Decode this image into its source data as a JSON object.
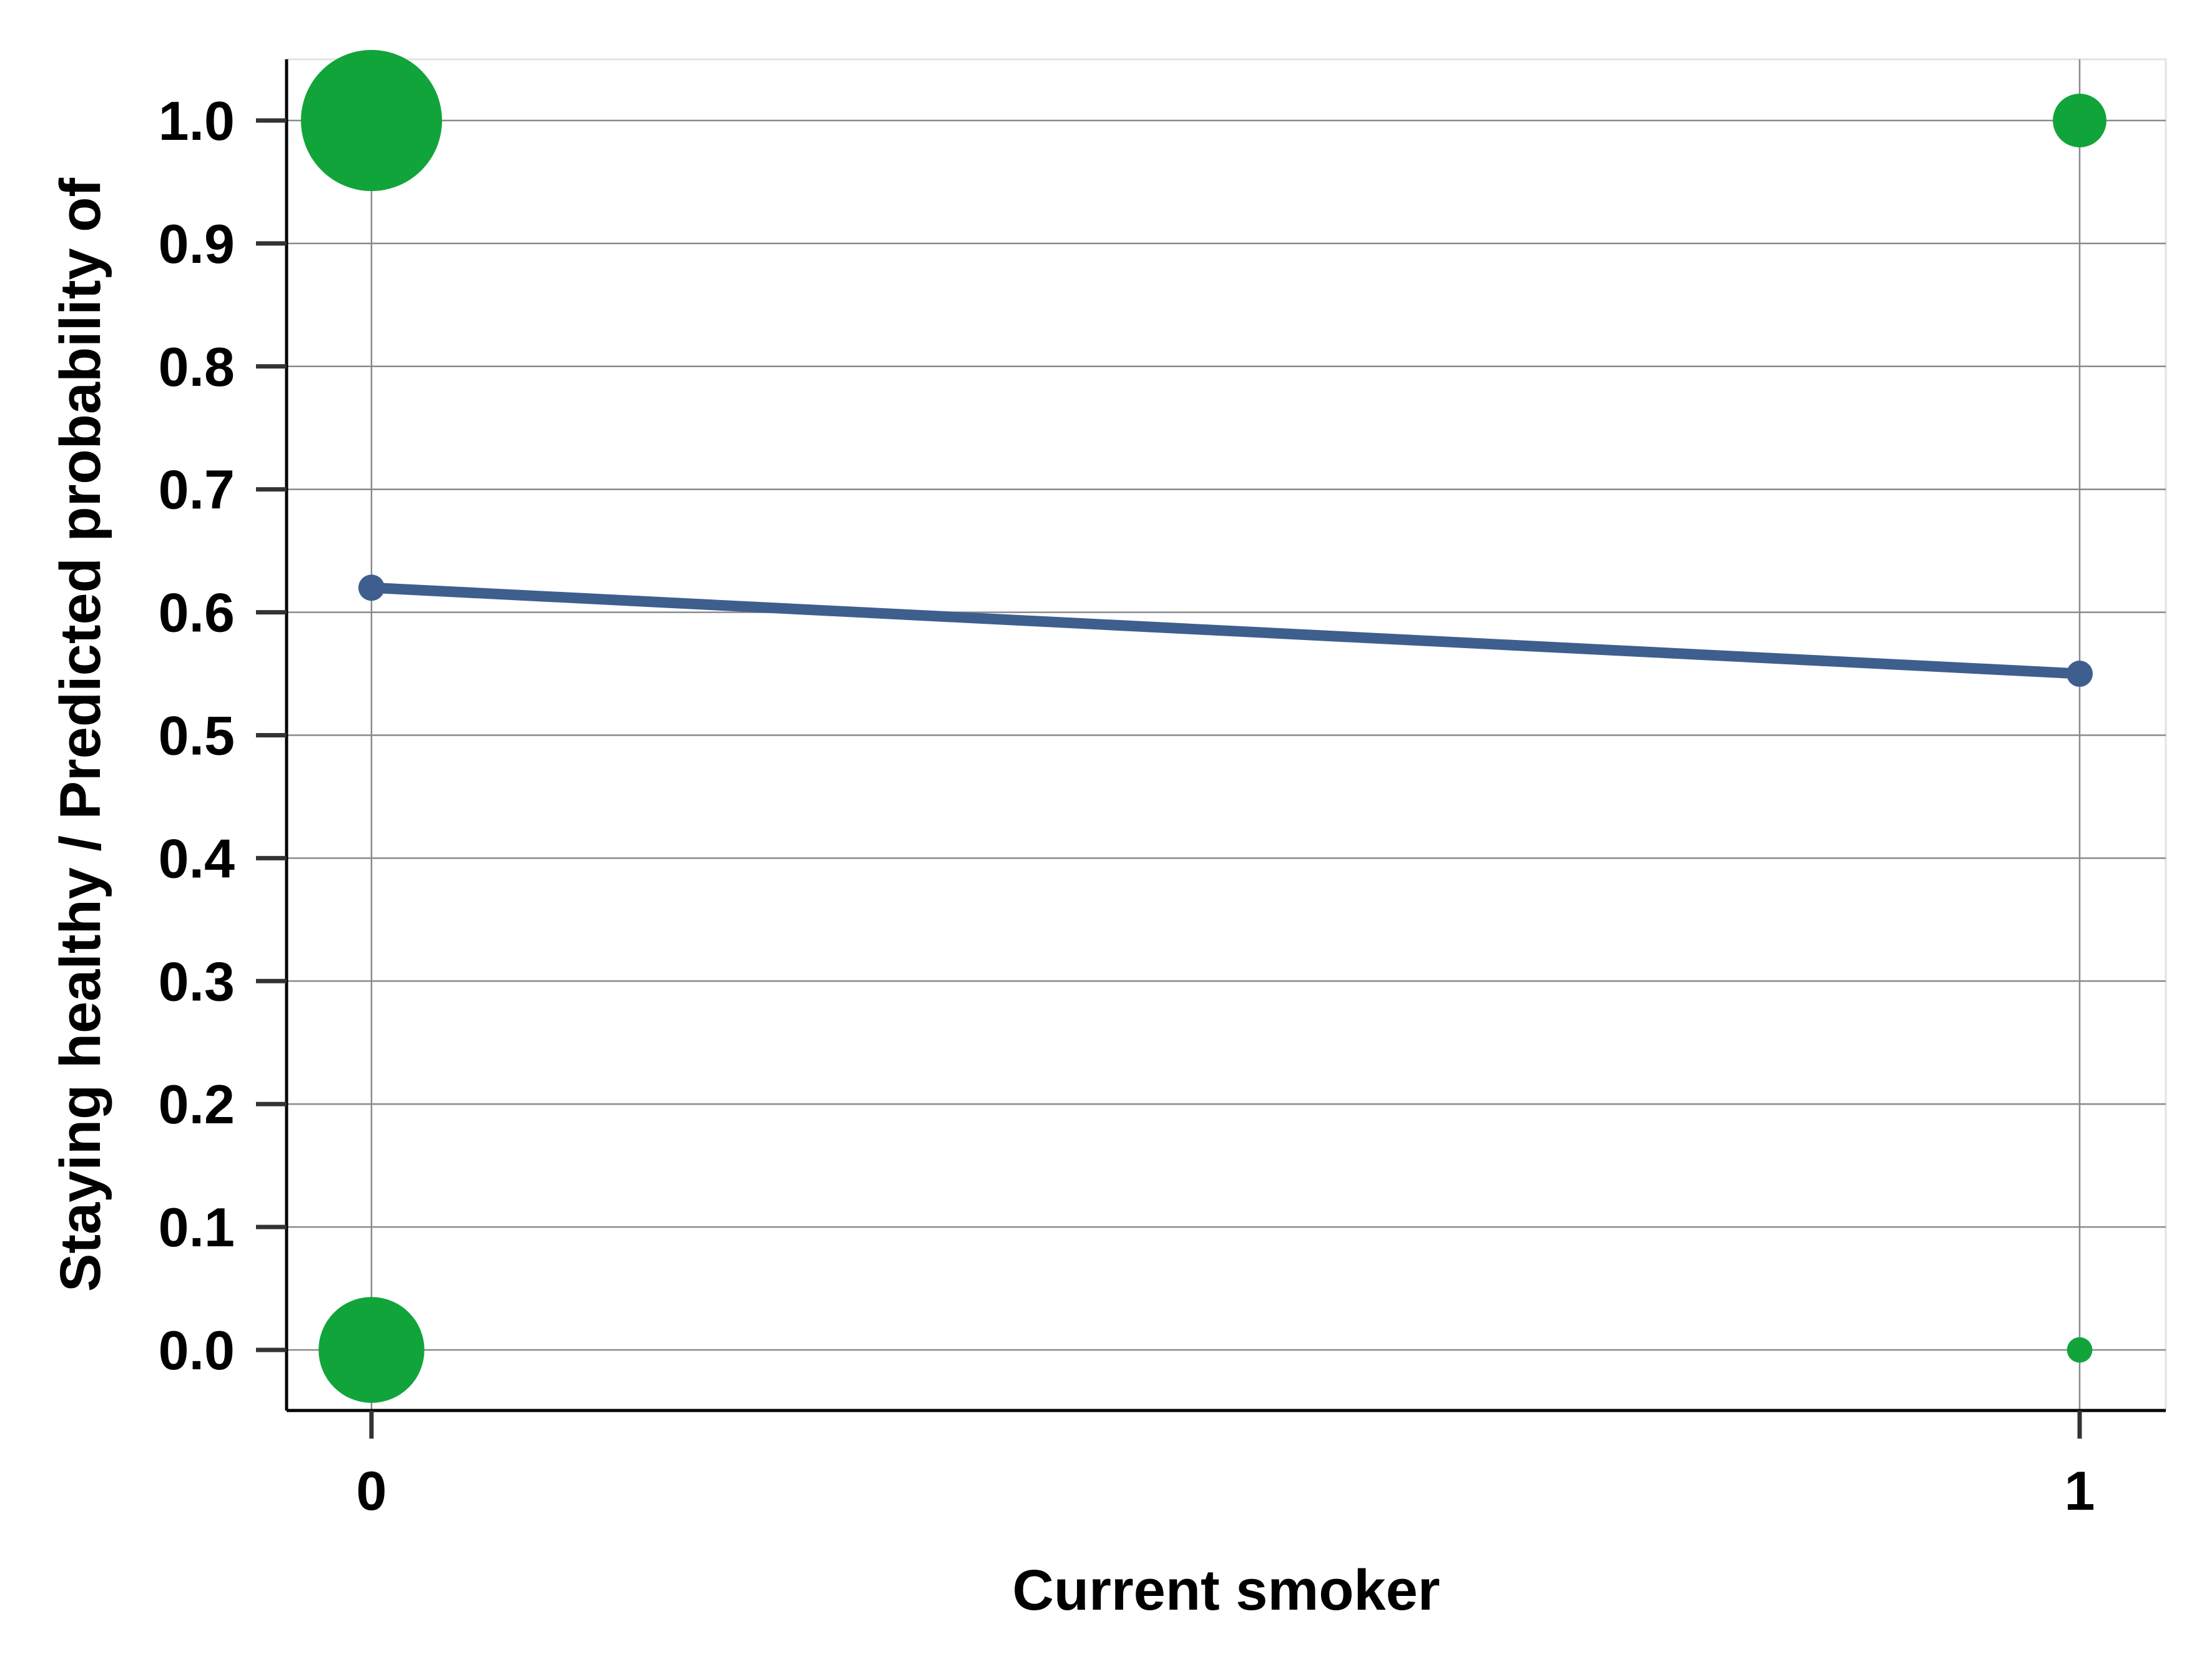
{
  "chart_data": {
    "type": "scatter",
    "title": "",
    "xlabel": "Current smoker",
    "ylabel": "Staying healthy / Predicted probability of",
    "xlim": [
      -0.05,
      1.05
    ],
    "ylim": [
      -0.05,
      1.05
    ],
    "x_ticks": [
      0,
      1
    ],
    "x_tick_labels": [
      "0",
      "1"
    ],
    "y_ticks": [
      0.0,
      0.1,
      0.2,
      0.3,
      0.4,
      0.5,
      0.6,
      0.7,
      0.8,
      0.9,
      1.0
    ],
    "y_tick_labels": [
      "0.0",
      "0.1",
      "0.2",
      "0.3",
      "0.4",
      "0.5",
      "0.6",
      "0.7",
      "0.8",
      "0.9",
      "1.0"
    ],
    "grid": true,
    "legend": "none",
    "series": [
      {
        "kind": "observed",
        "points": [
          {
            "x": 0,
            "y": 1.0,
            "relative_size": 1.0
          },
          {
            "x": 0,
            "y": 0.0,
            "relative_size": 0.75
          },
          {
            "x": 1,
            "y": 1.0,
            "relative_size": 0.38
          },
          {
            "x": 1,
            "y": 0.0,
            "relative_size": 0.18
          }
        ]
      },
      {
        "kind": "predicted",
        "points": [
          {
            "x": 0,
            "y": 0.62
          },
          {
            "x": 1,
            "y": 0.55
          }
        ]
      }
    ],
    "colors": {
      "observed": "#11a43a",
      "predicted": "#3e5e8e",
      "grid": "#8a8a8a",
      "axis": "#000000",
      "tick": "#333333",
      "plot_background": "#ffffff"
    }
  }
}
